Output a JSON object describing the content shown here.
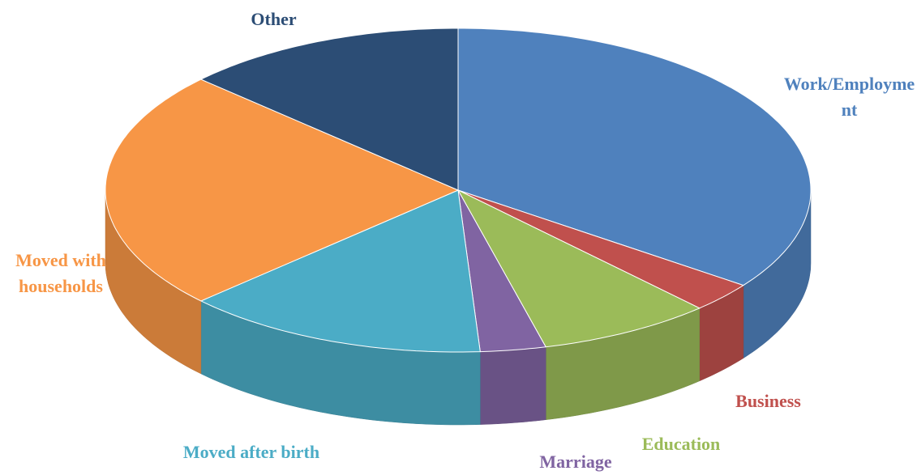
{
  "chart_data": {
    "type": "pie",
    "categories": [
      "Work/Employment",
      "Business",
      "Education",
      "Marriage",
      "Moved after birth",
      "Moved with households",
      "Other"
    ],
    "values": [
      35,
      3,
      8,
      3,
      14,
      24,
      13
    ],
    "colors": [
      "#4f81bd",
      "#c0504d",
      "#9bbb59",
      "#8064a2",
      "#4bacc6",
      "#f79646",
      "#2c4d75"
    ]
  }
}
